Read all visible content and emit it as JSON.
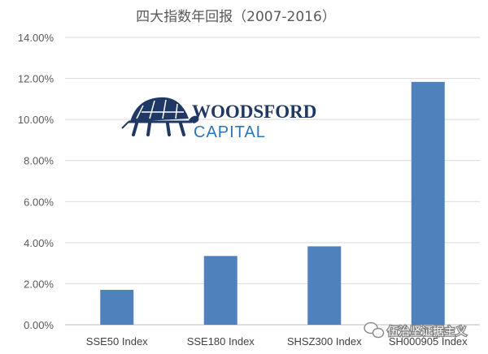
{
  "chart_data": {
    "type": "bar",
    "title": "四大指数年回报（2007-2016）",
    "categories": [
      "SSE50 Index",
      "SSE180 Index",
      "SHSZ300 Index",
      "SH000905 Index"
    ],
    "values": [
      1.7,
      3.35,
      3.82,
      11.83
    ],
    "value_format": "percent",
    "ylim": [
      0,
      14
    ],
    "yticks": [
      "0.00%",
      "2.00%",
      "4.00%",
      "6.00%",
      "8.00%",
      "10.00%",
      "12.00%",
      "14.00%"
    ],
    "xlabel": "",
    "ylabel": "",
    "grid": true,
    "legend": "none",
    "bar_color": "#4f81bd"
  },
  "logo": {
    "line1": "WOODSFORD",
    "line2": "CAPITAL",
    "icon": "tortoise-icon"
  },
  "watermark": {
    "text": "伍治坚证据主义",
    "icon": "wechat-icon"
  }
}
